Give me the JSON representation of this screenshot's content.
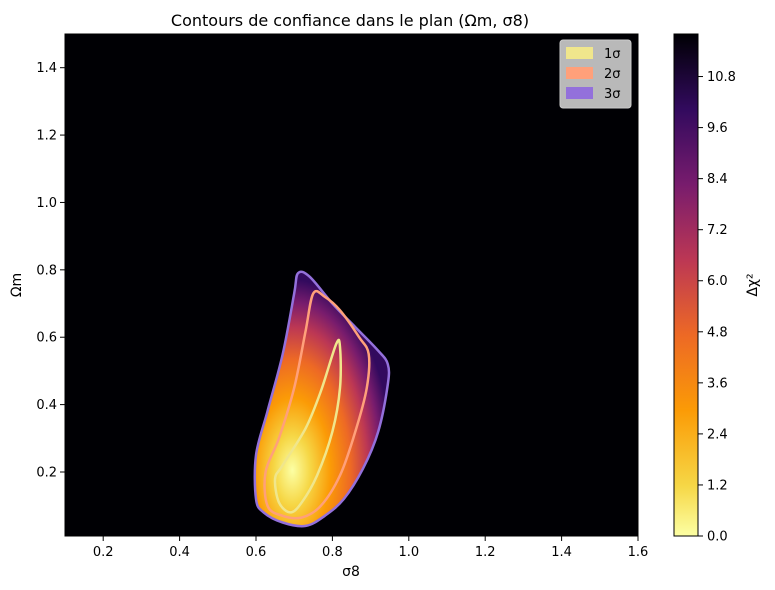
{
  "chart_data": {
    "type": "heatmap",
    "title": "Contours de confiance dans le plan (Ωm, σ8)",
    "xlabel": "σ8",
    "ylabel": "Ωm",
    "xlim": [
      0.1,
      1.6
    ],
    "ylim": [
      0.01,
      1.5
    ],
    "xticks": [
      "0.2",
      "0.4",
      "0.6",
      "0.8",
      "1.0",
      "1.2",
      "1.4",
      "1.6"
    ],
    "yticks": [
      "0.2",
      "0.4",
      "0.6",
      "0.8",
      "1.0",
      "1.2",
      "1.4"
    ],
    "grid": false,
    "colormap": "inferno_r",
    "background_color": "#000004",
    "colorbar": {
      "label": "Δχ²",
      "min": 0.0,
      "max": 11.8,
      "ticks": [
        "0.0",
        "1.2",
        "2.4",
        "3.6",
        "4.8",
        "6.0",
        "7.2",
        "8.4",
        "9.6",
        "10.8"
      ]
    },
    "legend": {
      "placement": "top-right",
      "entries": [
        {
          "label": "1σ",
          "color": "#f0e68c"
        },
        {
          "label": "2σ",
          "color": "#ffa07a"
        },
        {
          "label": "3σ",
          "color": "#9370db"
        }
      ]
    },
    "contours": [
      {
        "level": "3σ",
        "color": "#9370db",
        "points": [
          [
            0.71,
            0.79
          ],
          [
            0.74,
            0.78
          ],
          [
            0.8,
            0.7
          ],
          [
            0.86,
            0.63
          ],
          [
            0.92,
            0.56
          ],
          [
            0.945,
            0.52
          ],
          [
            0.945,
            0.46
          ],
          [
            0.92,
            0.32
          ],
          [
            0.88,
            0.21
          ],
          [
            0.83,
            0.12
          ],
          [
            0.78,
            0.07
          ],
          [
            0.73,
            0.04
          ],
          [
            0.67,
            0.05
          ],
          [
            0.62,
            0.08
          ],
          [
            0.6,
            0.12
          ],
          [
            0.6,
            0.25
          ],
          [
            0.63,
            0.38
          ],
          [
            0.67,
            0.55
          ],
          [
            0.7,
            0.73
          ]
        ]
      },
      {
        "level": "2σ",
        "color": "#ffa07a",
        "points": [
          [
            0.75,
            0.73
          ],
          [
            0.78,
            0.72
          ],
          [
            0.82,
            0.68
          ],
          [
            0.87,
            0.6
          ],
          [
            0.895,
            0.55
          ],
          [
            0.89,
            0.45
          ],
          [
            0.86,
            0.32
          ],
          [
            0.82,
            0.19
          ],
          [
            0.77,
            0.1
          ],
          [
            0.72,
            0.065
          ],
          [
            0.67,
            0.07
          ],
          [
            0.63,
            0.1
          ],
          [
            0.625,
            0.2
          ],
          [
            0.66,
            0.3
          ],
          [
            0.7,
            0.45
          ],
          [
            0.73,
            0.62
          ]
        ]
      },
      {
        "level": "1σ",
        "color": "#f0e68c",
        "points": [
          [
            0.81,
            0.58
          ],
          [
            0.82,
            0.57
          ],
          [
            0.82,
            0.45
          ],
          [
            0.8,
            0.32
          ],
          [
            0.76,
            0.19
          ],
          [
            0.72,
            0.11
          ],
          [
            0.69,
            0.08
          ],
          [
            0.66,
            0.11
          ],
          [
            0.65,
            0.18
          ],
          [
            0.67,
            0.22
          ],
          [
            0.73,
            0.33
          ],
          [
            0.77,
            0.44
          ]
        ]
      }
    ]
  }
}
